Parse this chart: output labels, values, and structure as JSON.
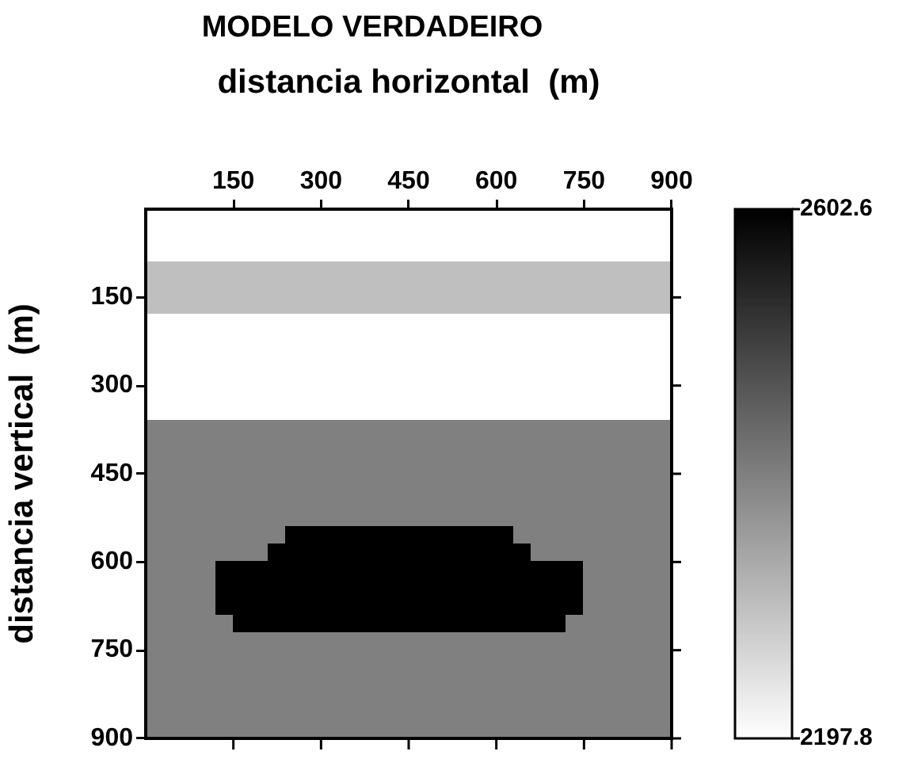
{
  "chart_data": {
    "type": "heatmap",
    "title": "MODELO VERDADEIRO",
    "xlabel": "distancia horizontal  (m)",
    "ylabel": "distancia vertical  (m)",
    "xlim": [
      0,
      900
    ],
    "xticks": [
      150,
      300,
      450,
      600,
      750,
      900
    ],
    "ylim": [
      900,
      0
    ],
    "yticks": [
      150,
      300,
      450,
      600,
      750,
      900
    ],
    "clim": [
      2197.8,
      2602.6
    ],
    "cticks": [
      2197.8,
      2602.6
    ],
    "cells": [
      [
        2198,
        2198,
        2198,
        2198,
        2198,
        2198,
        2198,
        2198,
        2198,
        2198,
        2198,
        2198,
        2198,
        2198,
        2198,
        2198,
        2198,
        2198,
        2198,
        2198,
        2198,
        2198,
        2198,
        2198,
        2198,
        2198,
        2198,
        2198,
        2198,
        2198
      ],
      [
        2198,
        2198,
        2198,
        2198,
        2198,
        2198,
        2198,
        2198,
        2198,
        2198,
        2198,
        2198,
        2198,
        2198,
        2198,
        2198,
        2198,
        2198,
        2198,
        2198,
        2198,
        2198,
        2198,
        2198,
        2198,
        2198,
        2198,
        2198,
        2198,
        2198
      ],
      [
        2198,
        2198,
        2198,
        2198,
        2198,
        2198,
        2198,
        2198,
        2198,
        2198,
        2198,
        2198,
        2198,
        2198,
        2198,
        2198,
        2198,
        2198,
        2198,
        2198,
        2198,
        2198,
        2198,
        2198,
        2198,
        2198,
        2198,
        2198,
        2198,
        2198
      ],
      [
        2300,
        2300,
        2300,
        2300,
        2300,
        2300,
        2300,
        2300,
        2300,
        2300,
        2300,
        2300,
        2300,
        2300,
        2300,
        2300,
        2300,
        2300,
        2300,
        2300,
        2300,
        2300,
        2300,
        2300,
        2300,
        2300,
        2300,
        2300,
        2300,
        2300
      ],
      [
        2300,
        2300,
        2300,
        2300,
        2300,
        2300,
        2300,
        2300,
        2300,
        2300,
        2300,
        2300,
        2300,
        2300,
        2300,
        2300,
        2300,
        2300,
        2300,
        2300,
        2300,
        2300,
        2300,
        2300,
        2300,
        2300,
        2300,
        2300,
        2300,
        2300
      ],
      [
        2300,
        2300,
        2300,
        2300,
        2300,
        2300,
        2300,
        2300,
        2300,
        2300,
        2300,
        2300,
        2300,
        2300,
        2300,
        2300,
        2300,
        2300,
        2300,
        2300,
        2300,
        2300,
        2300,
        2300,
        2300,
        2300,
        2300,
        2300,
        2300,
        2300
      ],
      [
        2198,
        2198,
        2198,
        2198,
        2198,
        2198,
        2198,
        2198,
        2198,
        2198,
        2198,
        2198,
        2198,
        2198,
        2198,
        2198,
        2198,
        2198,
        2198,
        2198,
        2198,
        2198,
        2198,
        2198,
        2198,
        2198,
        2198,
        2198,
        2198,
        2198
      ],
      [
        2198,
        2198,
        2198,
        2198,
        2198,
        2198,
        2198,
        2198,
        2198,
        2198,
        2198,
        2198,
        2198,
        2198,
        2198,
        2198,
        2198,
        2198,
        2198,
        2198,
        2198,
        2198,
        2198,
        2198,
        2198,
        2198,
        2198,
        2198,
        2198,
        2198
      ],
      [
        2198,
        2198,
        2198,
        2198,
        2198,
        2198,
        2198,
        2198,
        2198,
        2198,
        2198,
        2198,
        2198,
        2198,
        2198,
        2198,
        2198,
        2198,
        2198,
        2198,
        2198,
        2198,
        2198,
        2198,
        2198,
        2198,
        2198,
        2198,
        2198,
        2198
      ],
      [
        2198,
        2198,
        2198,
        2198,
        2198,
        2198,
        2198,
        2198,
        2198,
        2198,
        2198,
        2198,
        2198,
        2198,
        2198,
        2198,
        2198,
        2198,
        2198,
        2198,
        2198,
        2198,
        2198,
        2198,
        2198,
        2198,
        2198,
        2198,
        2198,
        2198
      ],
      [
        2198,
        2198,
        2198,
        2198,
        2198,
        2198,
        2198,
        2198,
        2198,
        2198,
        2198,
        2198,
        2198,
        2198,
        2198,
        2198,
        2198,
        2198,
        2198,
        2198,
        2198,
        2198,
        2198,
        2198,
        2198,
        2198,
        2198,
        2198,
        2198,
        2198
      ],
      [
        2198,
        2198,
        2198,
        2198,
        2198,
        2198,
        2198,
        2198,
        2198,
        2198,
        2198,
        2198,
        2198,
        2198,
        2198,
        2198,
        2198,
        2198,
        2198,
        2198,
        2198,
        2198,
        2198,
        2198,
        2198,
        2198,
        2198,
        2198,
        2198,
        2198
      ],
      [
        2400,
        2400,
        2400,
        2400,
        2400,
        2400,
        2400,
        2400,
        2400,
        2400,
        2400,
        2400,
        2400,
        2400,
        2400,
        2400,
        2400,
        2400,
        2400,
        2400,
        2400,
        2400,
        2400,
        2400,
        2400,
        2400,
        2400,
        2400,
        2400,
        2400
      ],
      [
        2400,
        2400,
        2400,
        2400,
        2400,
        2400,
        2400,
        2400,
        2400,
        2400,
        2400,
        2400,
        2400,
        2400,
        2400,
        2400,
        2400,
        2400,
        2400,
        2400,
        2400,
        2400,
        2400,
        2400,
        2400,
        2400,
        2400,
        2400,
        2400,
        2400
      ],
      [
        2400,
        2400,
        2400,
        2400,
        2400,
        2400,
        2400,
        2400,
        2400,
        2400,
        2400,
        2400,
        2400,
        2400,
        2400,
        2400,
        2400,
        2400,
        2400,
        2400,
        2400,
        2400,
        2400,
        2400,
        2400,
        2400,
        2400,
        2400,
        2400,
        2400
      ],
      [
        2400,
        2400,
        2400,
        2400,
        2400,
        2400,
        2400,
        2400,
        2400,
        2400,
        2400,
        2400,
        2400,
        2400,
        2400,
        2400,
        2400,
        2400,
        2400,
        2400,
        2400,
        2400,
        2400,
        2400,
        2400,
        2400,
        2400,
        2400,
        2400,
        2400
      ],
      [
        2400,
        2400,
        2400,
        2400,
        2400,
        2400,
        2400,
        2400,
        2400,
        2400,
        2400,
        2400,
        2400,
        2400,
        2400,
        2400,
        2400,
        2400,
        2400,
        2400,
        2400,
        2400,
        2400,
        2400,
        2400,
        2400,
        2400,
        2400,
        2400,
        2400
      ],
      [
        2400,
        2400,
        2400,
        2400,
        2400,
        2400,
        2400,
        2400,
        2400,
        2400,
        2400,
        2400,
        2400,
        2400,
        2400,
        2400,
        2400,
        2400,
        2400,
        2400,
        2400,
        2400,
        2400,
        2400,
        2400,
        2400,
        2400,
        2400,
        2400,
        2400
      ],
      [
        2400,
        2400,
        2400,
        2400,
        2400,
        2400,
        2400,
        2400,
        2602,
        2602,
        2602,
        2602,
        2602,
        2602,
        2602,
        2602,
        2602,
        2602,
        2602,
        2602,
        2602,
        2400,
        2400,
        2400,
        2400,
        2400,
        2400,
        2400,
        2400,
        2400
      ],
      [
        2400,
        2400,
        2400,
        2400,
        2400,
        2400,
        2400,
        2602,
        2602,
        2602,
        2602,
        2602,
        2602,
        2602,
        2602,
        2602,
        2602,
        2602,
        2602,
        2602,
        2602,
        2602,
        2400,
        2400,
        2400,
        2400,
        2400,
        2400,
        2400,
        2400
      ],
      [
        2400,
        2400,
        2400,
        2400,
        2602,
        2602,
        2602,
        2602,
        2602,
        2602,
        2602,
        2602,
        2602,
        2602,
        2602,
        2602,
        2602,
        2602,
        2602,
        2602,
        2602,
        2602,
        2602,
        2602,
        2602,
        2400,
        2400,
        2400,
        2400,
        2400
      ],
      [
        2400,
        2400,
        2400,
        2400,
        2602,
        2602,
        2602,
        2602,
        2602,
        2602,
        2602,
        2602,
        2602,
        2602,
        2602,
        2602,
        2602,
        2602,
        2602,
        2602,
        2602,
        2602,
        2602,
        2602,
        2602,
        2400,
        2400,
        2400,
        2400,
        2400
      ],
      [
        2400,
        2400,
        2400,
        2400,
        2602,
        2602,
        2602,
        2602,
        2602,
        2602,
        2602,
        2602,
        2602,
        2602,
        2602,
        2602,
        2602,
        2602,
        2602,
        2602,
        2602,
        2602,
        2602,
        2602,
        2602,
        2400,
        2400,
        2400,
        2400,
        2400
      ],
      [
        2400,
        2400,
        2400,
        2400,
        2400,
        2602,
        2602,
        2602,
        2602,
        2602,
        2602,
        2602,
        2602,
        2602,
        2602,
        2602,
        2602,
        2602,
        2602,
        2602,
        2602,
        2602,
        2602,
        2602,
        2400,
        2400,
        2400,
        2400,
        2400,
        2400
      ],
      [
        2400,
        2400,
        2400,
        2400,
        2400,
        2400,
        2400,
        2400,
        2400,
        2400,
        2400,
        2400,
        2400,
        2400,
        2400,
        2400,
        2400,
        2400,
        2400,
        2400,
        2400,
        2400,
        2400,
        2400,
        2400,
        2400,
        2400,
        2400,
        2400,
        2400
      ],
      [
        2400,
        2400,
        2400,
        2400,
        2400,
        2400,
        2400,
        2400,
        2400,
        2400,
        2400,
        2400,
        2400,
        2400,
        2400,
        2400,
        2400,
        2400,
        2400,
        2400,
        2400,
        2400,
        2400,
        2400,
        2400,
        2400,
        2400,
        2400,
        2400,
        2400
      ],
      [
        2400,
        2400,
        2400,
        2400,
        2400,
        2400,
        2400,
        2400,
        2400,
        2400,
        2400,
        2400,
        2400,
        2400,
        2400,
        2400,
        2400,
        2400,
        2400,
        2400,
        2400,
        2400,
        2400,
        2400,
        2400,
        2400,
        2400,
        2400,
        2400,
        2400
      ],
      [
        2400,
        2400,
        2400,
        2400,
        2400,
        2400,
        2400,
        2400,
        2400,
        2400,
        2400,
        2400,
        2400,
        2400,
        2400,
        2400,
        2400,
        2400,
        2400,
        2400,
        2400,
        2400,
        2400,
        2400,
        2400,
        2400,
        2400,
        2400,
        2400,
        2400
      ],
      [
        2400,
        2400,
        2400,
        2400,
        2400,
        2400,
        2400,
        2400,
        2400,
        2400,
        2400,
        2400,
        2400,
        2400,
        2400,
        2400,
        2400,
        2400,
        2400,
        2400,
        2400,
        2400,
        2400,
        2400,
        2400,
        2400,
        2400,
        2400,
        2400,
        2400
      ],
      [
        2400,
        2400,
        2400,
        2400,
        2400,
        2400,
        2400,
        2400,
        2400,
        2400,
        2400,
        2400,
        2400,
        2400,
        2400,
        2400,
        2400,
        2400,
        2400,
        2400,
        2400,
        2400,
        2400,
        2400,
        2400,
        2400,
        2400,
        2400,
        2400,
        2400
      ]
    ]
  }
}
